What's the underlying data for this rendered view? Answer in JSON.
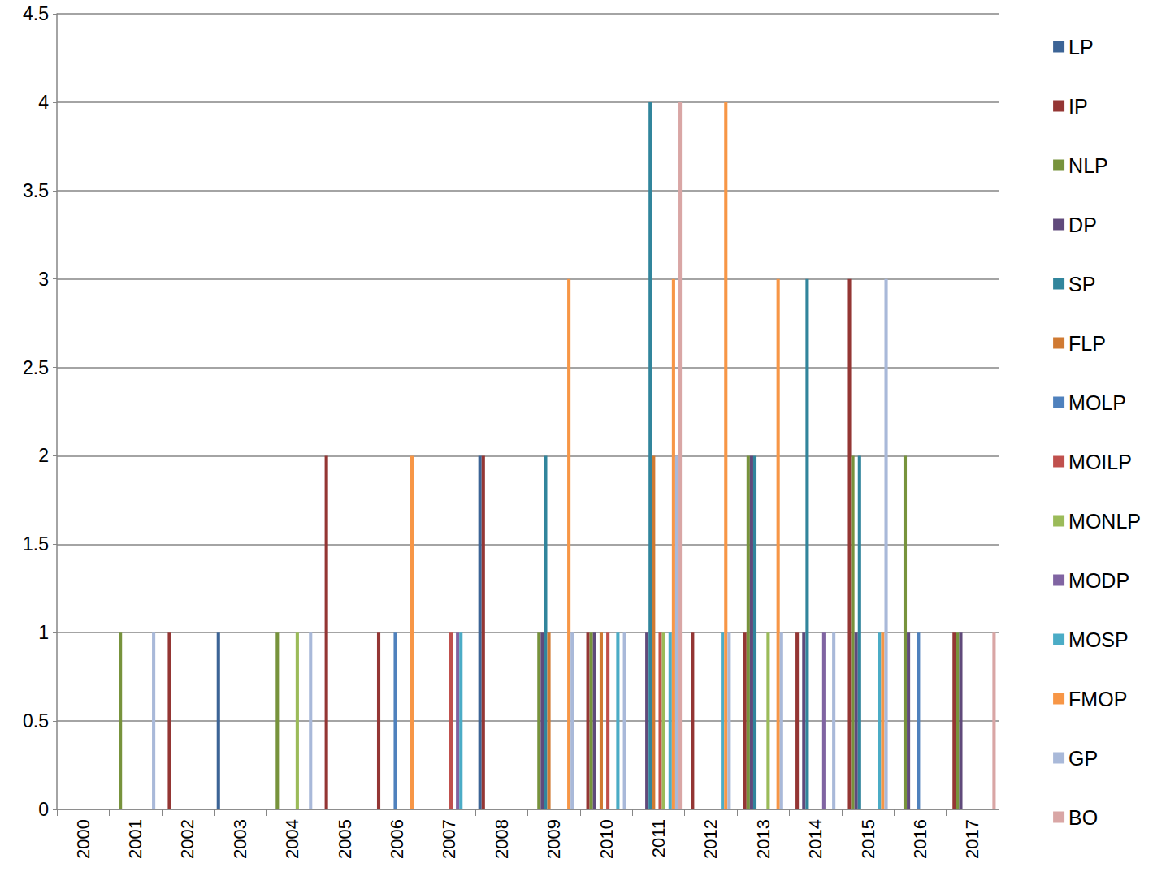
{
  "chart_data": {
    "type": "bar",
    "categories": [
      "2000",
      "2001",
      "2002",
      "2003",
      "2004",
      "2005",
      "2006",
      "2007",
      "2008",
      "2009",
      "2010",
      "2011",
      "2012",
      "2013",
      "2014",
      "2015",
      "2016",
      "2017"
    ],
    "series": [
      {
        "name": "LP",
        "color": "#3c6496",
        "values": [
          0,
          0,
          0,
          1,
          0,
          0,
          0,
          0,
          2,
          0,
          0,
          0,
          0,
          0,
          0,
          0,
          0,
          0
        ]
      },
      {
        "name": "IP",
        "color": "#943634",
        "values": [
          0,
          0,
          1,
          0,
          0,
          2,
          1,
          0,
          2,
          0,
          1,
          0,
          1,
          1,
          1,
          3,
          0,
          1
        ]
      },
      {
        "name": "NLP",
        "color": "#77933c",
        "values": [
          0,
          1,
          0,
          0,
          1,
          0,
          0,
          0,
          0,
          1,
          1,
          0,
          0,
          2,
          0,
          2,
          2,
          1
        ]
      },
      {
        "name": "DP",
        "color": "#604a7b",
        "values": [
          0,
          0,
          0,
          0,
          0,
          0,
          0,
          0,
          0,
          1,
          1,
          1,
          0,
          2,
          1,
          1,
          1,
          1
        ]
      },
      {
        "name": "SP",
        "color": "#31859c",
        "values": [
          0,
          0,
          0,
          0,
          0,
          0,
          0,
          0,
          0,
          2,
          0,
          4,
          0,
          2,
          3,
          2,
          0,
          0
        ]
      },
      {
        "name": "FLP",
        "color": "#d07a32",
        "values": [
          0,
          0,
          0,
          0,
          0,
          0,
          0,
          0,
          0,
          1,
          1,
          2,
          0,
          0,
          0,
          0,
          0,
          0
        ]
      },
      {
        "name": "MOLP",
        "color": "#4f81bd",
        "values": [
          0,
          0,
          0,
          0,
          0,
          0,
          1,
          0,
          0,
          0,
          0,
          0,
          0,
          0,
          0,
          0,
          1,
          0
        ]
      },
      {
        "name": "MOILP",
        "color": "#c0504d",
        "values": [
          0,
          0,
          0,
          0,
          0,
          0,
          0,
          1,
          0,
          0,
          1,
          1,
          0,
          0,
          0,
          0,
          0,
          0
        ]
      },
      {
        "name": "MONLP",
        "color": "#9bbb59",
        "values": [
          0,
          0,
          0,
          0,
          1,
          0,
          0,
          0,
          0,
          0,
          0,
          1,
          0,
          1,
          0,
          0,
          0,
          0
        ]
      },
      {
        "name": "MODP",
        "color": "#8064a2",
        "values": [
          0,
          0,
          0,
          0,
          0,
          0,
          0,
          1,
          0,
          0,
          0,
          0,
          0,
          0,
          1,
          0,
          0,
          0
        ]
      },
      {
        "name": "MOSP",
        "color": "#4bacc6",
        "values": [
          0,
          0,
          0,
          0,
          0,
          0,
          0,
          1,
          0,
          0,
          1,
          1,
          1,
          0,
          0,
          1,
          0,
          0
        ]
      },
      {
        "name": "FMOP",
        "color": "#f79646",
        "values": [
          0,
          0,
          0,
          0,
          0,
          0,
          2,
          0,
          0,
          3,
          0,
          3,
          4,
          3,
          0,
          1,
          0,
          0
        ]
      },
      {
        "name": "GP",
        "color": "#a9b9d9",
        "values": [
          0,
          1,
          0,
          0,
          1,
          0,
          0,
          0,
          0,
          1,
          1,
          2,
          1,
          1,
          1,
          3,
          0,
          0
        ]
      },
      {
        "name": "BO",
        "color": "#d9a6a5",
        "values": [
          0,
          0,
          0,
          0,
          0,
          0,
          0,
          0,
          0,
          0,
          0,
          4,
          0,
          0,
          0,
          0,
          0,
          1
        ]
      }
    ],
    "ylim": [
      0,
      4.5
    ],
    "yticks": [
      0,
      0.5,
      1,
      1.5,
      2,
      2.5,
      3,
      3.5,
      4,
      4.5
    ],
    "grid": true,
    "legend": "right"
  }
}
